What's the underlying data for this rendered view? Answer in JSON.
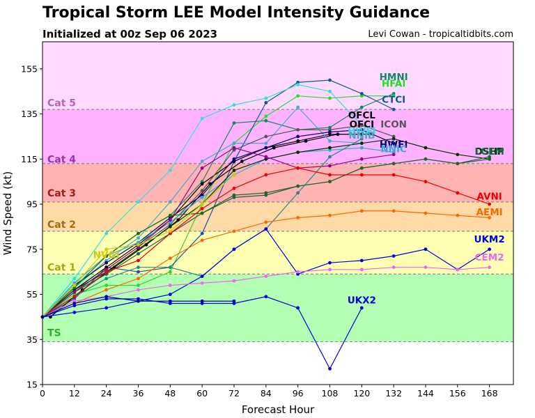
{
  "title": "Tropical Storm LEE Model Intensity Guidance",
  "subtitle": "Initialized at 00z Sep 06 2023",
  "credit": "Levi Cowan - tropicaltidbits.com",
  "chart_data": {
    "type": "line",
    "xlabel": "Forecast Hour",
    "ylabel": "Wind Speed (kt)",
    "xlim": [
      0,
      177
    ],
    "ylim": [
      15,
      167
    ],
    "xticks": [
      0,
      12,
      24,
      36,
      48,
      60,
      72,
      84,
      96,
      108,
      120,
      132,
      144,
      156,
      168
    ],
    "yticks": [
      15,
      35,
      55,
      75,
      95,
      115,
      135,
      155
    ],
    "bands": [
      {
        "label": "TS",
        "from": 34,
        "to": 64,
        "color": "#b3ffb3",
        "label_color": "#33aa33",
        "label_y": 38
      },
      {
        "label": "Cat 1",
        "from": 64,
        "to": 83,
        "color": "#ffffb3",
        "label_color": "#a6a61a",
        "label_y": 67
      },
      {
        "label": "Cat 2",
        "from": 83,
        "to": 96,
        "color": "#ffd9a6",
        "label_color": "#a66b1a",
        "label_y": 86
      },
      {
        "label": "Cat 3",
        "from": 96,
        "to": 113,
        "color": "#ffb3b3",
        "label_color": "#a61a1a",
        "label_y": 100
      },
      {
        "label": "Cat 4",
        "from": 113,
        "to": 137,
        "color": "#ffb3ff",
        "label_color": "#9933aa",
        "label_y": 115
      },
      {
        "label": "Cat 5",
        "from": 137,
        "to": 167,
        "color": "#ffd9ff",
        "label_color": "#b366b3",
        "label_y": 140
      }
    ],
    "series": [
      {
        "name": "HMNI",
        "color": "#118866",
        "label_pos": [
          132,
          150
        ],
        "x": [
          0,
          12,
          24,
          36,
          48,
          60,
          72,
          84,
          96,
          108,
          120,
          132
        ],
        "y": [
          45,
          60,
          72,
          82,
          90,
          105,
          131,
          132,
          128,
          129,
          138,
          144
        ]
      },
      {
        "name": "HFAI",
        "color": "#22dd22",
        "label_pos": [
          132,
          147
        ],
        "x": [
          0,
          12,
          24,
          36,
          48,
          60,
          72,
          84,
          96,
          108,
          120,
          132
        ],
        "y": [
          45,
          55,
          59,
          59,
          65,
          95,
          122,
          134,
          143,
          142,
          143,
          143
        ]
      },
      {
        "name": "CTCI",
        "color": "#1155aa",
        "label_pos": [
          132,
          140
        ],
        "x": [
          0,
          12,
          24,
          36,
          48,
          60,
          72,
          84,
          96,
          108,
          120,
          132
        ],
        "y": [
          45,
          53,
          67,
          65,
          67,
          82,
          114,
          140,
          149,
          150,
          144,
          137
        ]
      },
      {
        "name": "OFCL",
        "color": "#000000",
        "label_pos": [
          120,
          133
        ],
        "x": [
          0,
          12,
          24,
          36,
          48,
          60,
          72,
          84,
          96,
          108,
          120
        ],
        "y": [
          45,
          57,
          67,
          77,
          88,
          104,
          114,
          120,
          123,
          126,
          126
        ]
      },
      {
        "name": "OFCI",
        "color": "#000000",
        "label_pos": [
          120,
          129
        ],
        "x": [
          3,
          15,
          27,
          39,
          51,
          63,
          75,
          87,
          99,
          111,
          123
        ],
        "y": [
          45,
          57,
          67,
          77,
          88,
          104,
          114,
          120,
          123,
          126,
          126
        ]
      },
      {
        "name": "HWFI",
        "color": "#33dddd",
        "label_pos": [
          120,
          126
        ],
        "x": [
          0,
          12,
          24,
          36,
          48,
          60,
          72,
          84,
          96,
          108,
          120
        ],
        "y": [
          45,
          62,
          82,
          96,
          110,
          133,
          139,
          142,
          148,
          145,
          130
        ]
      },
      {
        "name": "NNIB",
        "color": "#44aacc",
        "label_pos": [
          120,
          124
        ],
        "x": [
          0,
          12,
          24,
          36,
          48,
          60,
          72,
          84,
          96,
          108,
          120
        ],
        "y": [
          45,
          58,
          70,
          80,
          96,
          114,
          122,
          122,
          138,
          123,
          122
        ]
      },
      {
        "name": "ICON",
        "color": "#555555",
        "label_pos": [
          132,
          129
        ],
        "x": [
          0,
          12,
          24,
          36,
          48,
          60,
          72,
          84,
          96,
          108,
          120,
          132
        ],
        "y": [
          45,
          56,
          66,
          76,
          86,
          101,
          119,
          125,
          128,
          128,
          130,
          125
        ]
      },
      {
        "name": "HWFI",
        "color": "#000077",
        "label_pos": [
          132,
          120
        ],
        "x": [
          0,
          12,
          24,
          36,
          48,
          60,
          72,
          84,
          96,
          108,
          120,
          132
        ],
        "y": [
          45,
          59,
          69,
          78,
          89,
          99,
          115,
          120,
          125,
          127,
          128,
          122
        ]
      },
      {
        "name": "NNIC",
        "color": "#33aadd",
        "label_pos": [
          132,
          118
        ],
        "x": [
          0,
          12,
          24,
          36,
          48,
          60,
          72,
          84,
          96,
          108,
          120,
          132
        ],
        "y": [
          45,
          60,
          72,
          78,
          87,
          98,
          108,
          115,
          118,
          119,
          120,
          118
        ]
      },
      {
        "name": "DSHP",
        "color": "#003300",
        "label_pos": [
          168,
          117
        ],
        "x": [
          0,
          12,
          24,
          36,
          48,
          60,
          72,
          84,
          96,
          108,
          120,
          132,
          144,
          156,
          168
        ],
        "y": [
          45,
          57,
          65,
          75,
          85,
          95,
          110,
          115,
          118,
          120,
          122,
          124,
          120,
          117,
          115
        ]
      },
      {
        "name": "LGEM",
        "color": "#116644",
        "label_pos": [
          168,
          117
        ],
        "x": [
          0,
          12,
          24,
          36,
          48,
          60,
          72,
          84,
          96,
          108,
          120,
          132,
          144,
          156,
          168
        ],
        "y": [
          45,
          56,
          64,
          73,
          82,
          91,
          98,
          99,
          103,
          105,
          111,
          113,
          115,
          113,
          116
        ]
      },
      {
        "name": "",
        "color": "#990099",
        "label_pos": null,
        "x": [
          0,
          12,
          24,
          36,
          48,
          60,
          72,
          84,
          96,
          108,
          120,
          132
        ],
        "y": [
          45,
          56,
          66,
          76,
          88,
          111,
          120,
          116,
          111,
          112,
          115,
          117
        ]
      },
      {
        "name": "",
        "color": "#226622",
        "label_pos": null,
        "x": [
          0,
          12,
          24,
          36,
          48,
          60,
          72,
          84,
          96,
          108,
          120,
          132,
          144,
          156,
          168
        ],
        "y": [
          45,
          58,
          72,
          82,
          90,
          91,
          99,
          100,
          103,
          105,
          111,
          113,
          115,
          113,
          115
        ]
      },
      {
        "name": "",
        "color": "#228888",
        "label_pos": null,
        "x": [
          0,
          12,
          24,
          36,
          48,
          60,
          72,
          84,
          96,
          108,
          120
        ],
        "y": [
          45,
          54,
          62,
          67,
          67,
          63,
          75,
          84,
          100,
          116,
          124
        ]
      },
      {
        "name": "AVNI",
        "color": "#ee0000",
        "label_pos": [
          168,
          97
        ],
        "x": [
          0,
          12,
          24,
          36,
          48,
          60,
          72,
          84,
          96,
          108,
          120,
          132,
          144,
          156,
          168
        ],
        "y": [
          45,
          54,
          65,
          70,
          82,
          93,
          102,
          108,
          111,
          108,
          108,
          108,
          105,
          100,
          95
        ]
      },
      {
        "name": "AEMI",
        "color": "#ff6600",
        "label_pos": [
          168,
          90
        ],
        "x": [
          0,
          12,
          24,
          36,
          48,
          60,
          72,
          84,
          96,
          108,
          120,
          132,
          144,
          156,
          168
        ],
        "y": [
          45,
          51,
          57,
          62,
          71,
          79,
          83,
          87,
          89,
          90,
          92,
          92,
          91,
          90,
          89
        ]
      },
      {
        "name": "NVGI",
        "color": "#cccc00",
        "label_pos": [
          24,
          71
        ],
        "x": [
          0,
          12,
          24,
          36,
          48,
          60,
          72
        ],
        "y": [
          45,
          59,
          75,
          77,
          83,
          95,
          108
        ]
      },
      {
        "name": "UKM2",
        "color": "#0000dd",
        "label_pos": [
          168,
          78
        ],
        "x": [
          0,
          12,
          24,
          36,
          48,
          60,
          72,
          84,
          96,
          108,
          120,
          132,
          144,
          156,
          168
        ],
        "y": [
          45,
          47,
          49,
          52,
          55,
          63,
          75,
          84,
          64,
          69,
          70,
          72,
          75,
          66,
          75
        ]
      },
      {
        "name": "CEM2",
        "color": "#ee66ee",
        "label_pos": [
          168,
          70
        ],
        "x": [
          0,
          12,
          24,
          36,
          48,
          60,
          72,
          84,
          96,
          108,
          120,
          132,
          144,
          156,
          168
        ],
        "y": [
          45,
          52,
          54,
          57,
          59,
          60,
          61,
          63,
          65,
          66,
          66,
          67,
          67,
          66,
          67
        ]
      },
      {
        "name": "UKX2",
        "color": "#0000dd",
        "label_pos": [
          120,
          51
        ],
        "x": [
          0,
          12,
          24,
          36,
          48,
          60,
          72,
          84,
          96,
          108,
          120
        ],
        "y": [
          45,
          50,
          53,
          53,
          51,
          51,
          51,
          54,
          49,
          22,
          49
        ]
      },
      {
        "name": "",
        "color": "#0000aa",
        "label_pos": null,
        "x": [
          0,
          12,
          24,
          36,
          48,
          60,
          72
        ],
        "y": [
          45,
          51,
          54,
          52,
          52,
          52,
          52
        ]
      }
    ]
  }
}
